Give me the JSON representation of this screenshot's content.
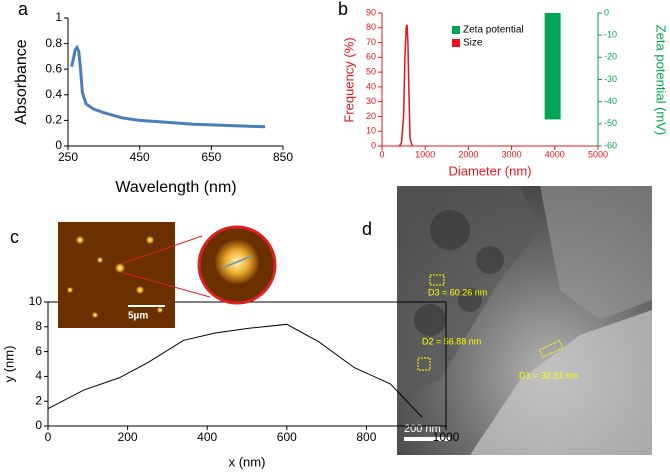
{
  "chart_data": [
    {
      "type": "line",
      "panel_label": "a",
      "xlabel": "Wavelength (nm)",
      "ylabel": "Absorbance",
      "color": "#4a7ebb",
      "x": [
        260,
        265,
        270,
        275,
        280,
        285,
        290,
        300,
        320,
        350,
        400,
        450,
        500,
        600,
        700,
        800
      ],
      "values": [
        0.62,
        0.68,
        0.75,
        0.77,
        0.74,
        0.6,
        0.42,
        0.33,
        0.29,
        0.26,
        0.22,
        0.2,
        0.19,
        0.17,
        0.16,
        0.15
      ],
      "xlim": [
        250,
        850
      ],
      "xticks": [
        250,
        450,
        650,
        850
      ],
      "ylim": [
        0,
        1
      ],
      "yticks": [
        0,
        0.2,
        0.4,
        0.6,
        0.8,
        1
      ]
    },
    {
      "type": "line",
      "panel_label": "b",
      "xlabel": "Diameter (nm)",
      "ylabel": "Frequency (%)",
      "y2label": "Zeta potential (mV)",
      "legend": "upper center",
      "series": [
        {
          "name": "Zeta potential",
          "type": "bar",
          "axis": "y2",
          "color": "#00a651",
          "x": [
            3950
          ],
          "values": [
            -48
          ]
        },
        {
          "name": "Size",
          "type": "line",
          "color": "#e8141a",
          "x": [
            400,
            450,
            500,
            530,
            560,
            580,
            600,
            620,
            650,
            700
          ],
          "values": [
            0,
            2,
            20,
            60,
            80,
            82,
            70,
            40,
            5,
            0
          ]
        }
      ],
      "xlim": [
        0,
        5000
      ],
      "xticks": [
        0,
        1000,
        2000,
        3000,
        4000,
        5000
      ],
      "ylim": [
        0,
        90
      ],
      "yticks": [
        0,
        10,
        20,
        30,
        40,
        50,
        60,
        70,
        80,
        90
      ],
      "y2lim": [
        -60,
        0
      ],
      "y2ticks": [
        0,
        -10,
        -20,
        -30,
        -40,
        -50,
        -60
      ]
    },
    {
      "type": "line",
      "panel_label": "c",
      "xlabel": "x (nm)",
      "ylabel": "y (nm)",
      "color": "#000000",
      "inset_scale_bar": "5µm",
      "x": [
        0,
        90,
        180,
        250,
        340,
        420,
        510,
        600,
        680,
        770,
        860,
        940
      ],
      "values": [
        1.4,
        2.9,
        3.9,
        5.1,
        6.9,
        7.5,
        7.9,
        8.2,
        6.8,
        4.7,
        3.4,
        0.7
      ],
      "xlim": [
        0,
        1000
      ],
      "xticks": [
        0,
        200,
        400,
        600,
        800,
        1000
      ],
      "ylim": [
        0,
        10
      ],
      "yticks": [
        0,
        2,
        4,
        6,
        8,
        10
      ]
    }
  ],
  "sem_image": {
    "panel_label": "d",
    "annotations": [
      "D3 = 60.26 nm",
      "D2 = 56.88 nm",
      "D1 = 32.31 nm"
    ],
    "scale_bar": "200 nm"
  }
}
